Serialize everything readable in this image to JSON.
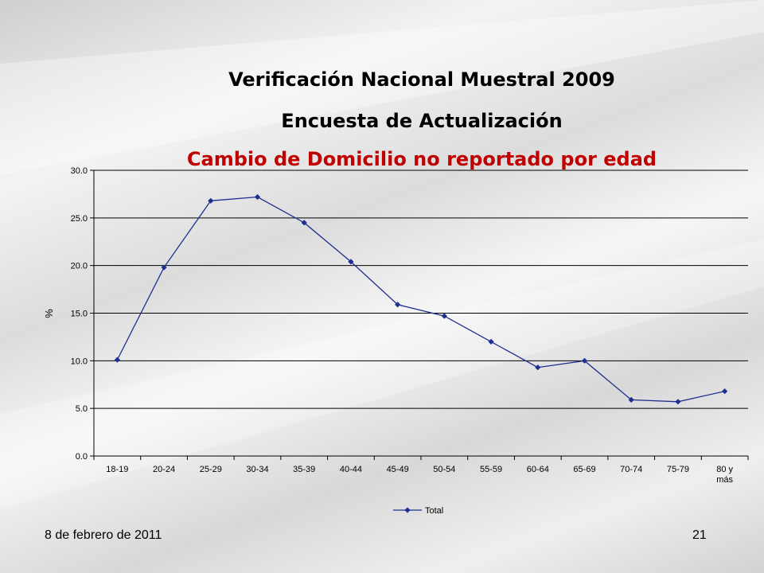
{
  "slide": {
    "title_line1": "Verificación Nacional Muestral 2009",
    "title_line2": "Encuesta de Actualización",
    "title_line3": "Cambio de Domicilio no reportado por edad",
    "footer_date": "8 de febrero de 2011",
    "page_number": "21",
    "title_accent_color": "#c00000"
  },
  "chart_data": {
    "type": "line",
    "title": "Cambio de Domicilio no reportado por edad",
    "xlabel": "",
    "ylabel": "%",
    "categories": [
      "18-19",
      "20-24",
      "25-29",
      "30-34",
      "35-39",
      "40-44",
      "45-49",
      "50-54",
      "55-59",
      "60-64",
      "65-69",
      "70-74",
      "75-79",
      "80 y más"
    ],
    "series": [
      {
        "name": "Total",
        "color": "#1f2f8f",
        "values": [
          10.1,
          19.8,
          26.8,
          27.2,
          24.5,
          20.4,
          15.9,
          14.7,
          12.0,
          9.3,
          10.0,
          5.9,
          5.7,
          6.8
        ]
      }
    ],
    "ylim": [
      0,
      30
    ],
    "yticks": [
      "0.0",
      "5.0",
      "10.0",
      "15.0",
      "20.0",
      "25.0",
      "30.0"
    ],
    "grid": true,
    "legend_placement": "bottom"
  }
}
